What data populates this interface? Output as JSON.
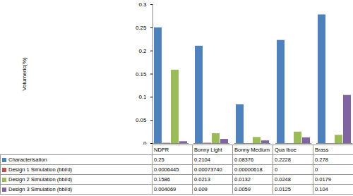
{
  "chart_data": {
    "type": "bar",
    "y_label": "Volumeric(%)",
    "categories": [
      "NDPR",
      "Bonny Light",
      "Bonny Medium",
      "Qua Iboe",
      "Brass"
    ],
    "series": [
      {
        "name": "Characterisation",
        "color": "#4f81bd",
        "values": [
          0.25,
          0.2104,
          0.08376,
          0.2228,
          0.278
        ]
      },
      {
        "name": "Design 1 Simulation (bbl/d)",
        "color": "#c0504d",
        "values": [
          0.0006445,
          0.0007374,
          6.18e-06,
          0,
          0
        ],
        "value_labels": [
          "0.0006445",
          "0.00073740",
          "0.00000618",
          "0",
          "0"
        ]
      },
      {
        "name": "Design 2 Simulation (bbl/d)",
        "color": "#9bbb59",
        "values": [
          0.1586,
          0.0213,
          0.0132,
          0.0248,
          0.0179
        ]
      },
      {
        "name": "Design 3 Simulation (bbl/d)",
        "color": "#8064a2",
        "values": [
          0.004069,
          0.009,
          0.0059,
          0.0125,
          0.104
        ]
      }
    ],
    "ylim": [
      0,
      0.3
    ],
    "yticks": [
      0,
      0.05,
      0.1,
      0.15,
      0.2,
      0.25,
      0.3
    ],
    "grid": false,
    "tick_labels": "y",
    "data_labels": true
  }
}
